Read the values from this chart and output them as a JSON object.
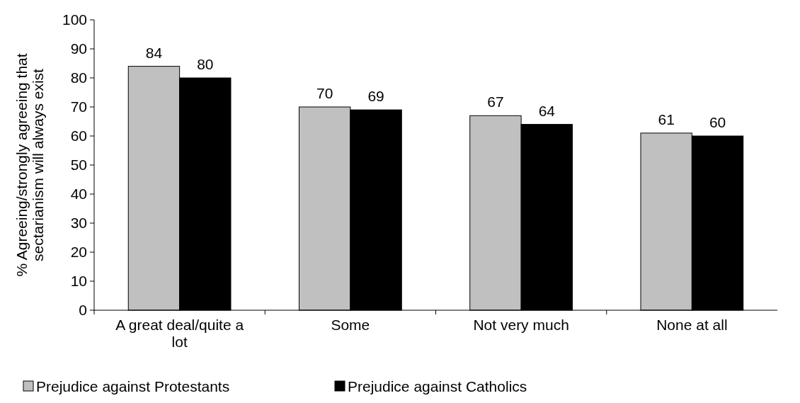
{
  "chart_data": {
    "type": "bar",
    "ylabel": "% Agreeing/strongly agreeing that sectarianism will always exist",
    "categories": [
      "A great deal/quite a lot",
      "Some",
      "Not very much",
      "None at all"
    ],
    "series": [
      {
        "name": "Prejudice against Protestants",
        "color": "#c0c0c0",
        "values": [
          84,
          70,
          67,
          61
        ]
      },
      {
        "name": "Prejudice against Catholics",
        "color": "#000000",
        "values": [
          80,
          69,
          64,
          60
        ]
      }
    ],
    "ylim": [
      0,
      100
    ],
    "yticks": [
      0,
      10,
      20,
      30,
      40,
      50,
      60,
      70,
      80,
      90,
      100
    ],
    "grid": false,
    "legend": "bottom",
    "data_labels": true
  }
}
